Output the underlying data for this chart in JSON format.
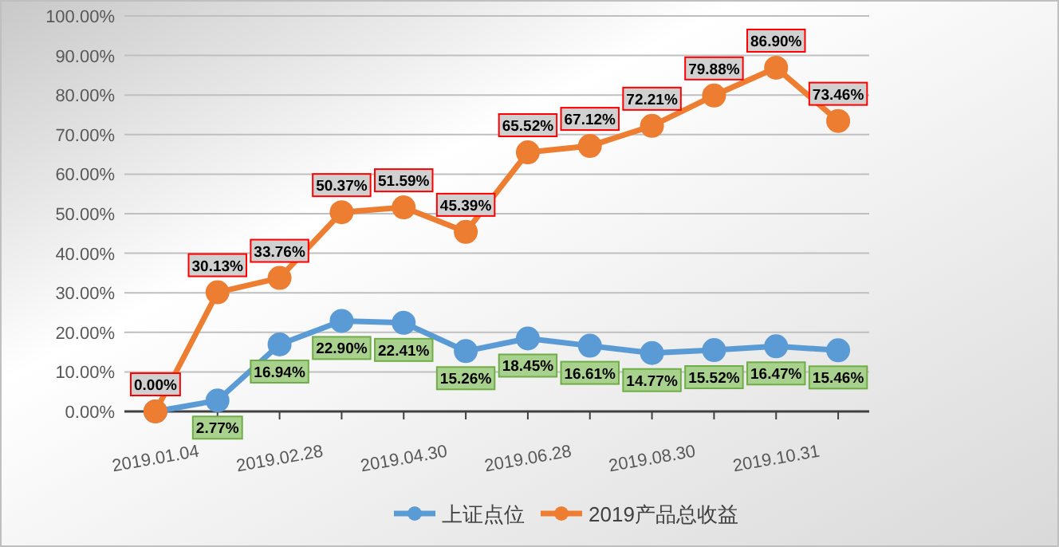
{
  "chart_data": {
    "type": "line",
    "categories": [
      "2019.01.04",
      null,
      "2019.02.28",
      null,
      "2019.04.30",
      null,
      "2019.06.28",
      null,
      "2019.08.30",
      null,
      "2019.10.31",
      null
    ],
    "ylim": [
      0,
      100
    ],
    "yticks": [
      {
        "value": 0,
        "label": "0.00%"
      },
      {
        "value": 10,
        "label": "10.00%"
      },
      {
        "value": 20,
        "label": "20.00%"
      },
      {
        "value": 30,
        "label": "30.00%"
      },
      {
        "value": 40,
        "label": "40.00%"
      },
      {
        "value": 50,
        "label": "50.00%"
      },
      {
        "value": 60,
        "label": "60.00%"
      },
      {
        "value": 70,
        "label": "70.00%"
      },
      {
        "value": 80,
        "label": "80.00%"
      },
      {
        "value": 90,
        "label": "90.00%"
      },
      {
        "value": 100,
        "label": "100.00%"
      }
    ],
    "grid": "y",
    "legend": "bottom",
    "marker": "circle",
    "line_style": "solid",
    "series": [
      {
        "name": "上证点位",
        "color": "#5b9bd5",
        "values": [
          0,
          2.77,
          16.94,
          22.9,
          22.41,
          15.26,
          18.45,
          16.61,
          14.77,
          15.52,
          16.47,
          15.46
        ],
        "value_labels": [
          null,
          "2.77%",
          "16.94%",
          "22.90%",
          "22.41%",
          "15.26%",
          "18.45%",
          "16.61%",
          "14.77%",
          "15.52%",
          "16.47%",
          "15.46%"
        ]
      },
      {
        "name": "2019产品总收益",
        "color": "#ed7d31",
        "values": [
          0,
          30.13,
          33.76,
          50.37,
          51.59,
          45.39,
          65.52,
          67.12,
          72.21,
          79.88,
          86.9,
          73.46
        ],
        "value_labels": [
          "0.00%",
          "30.13%",
          "33.76%",
          "50.37%",
          "51.59%",
          "45.39%",
          "65.52%",
          "67.12%",
          "72.21%",
          "79.88%",
          "86.90%",
          "73.46%"
        ]
      }
    ]
  }
}
